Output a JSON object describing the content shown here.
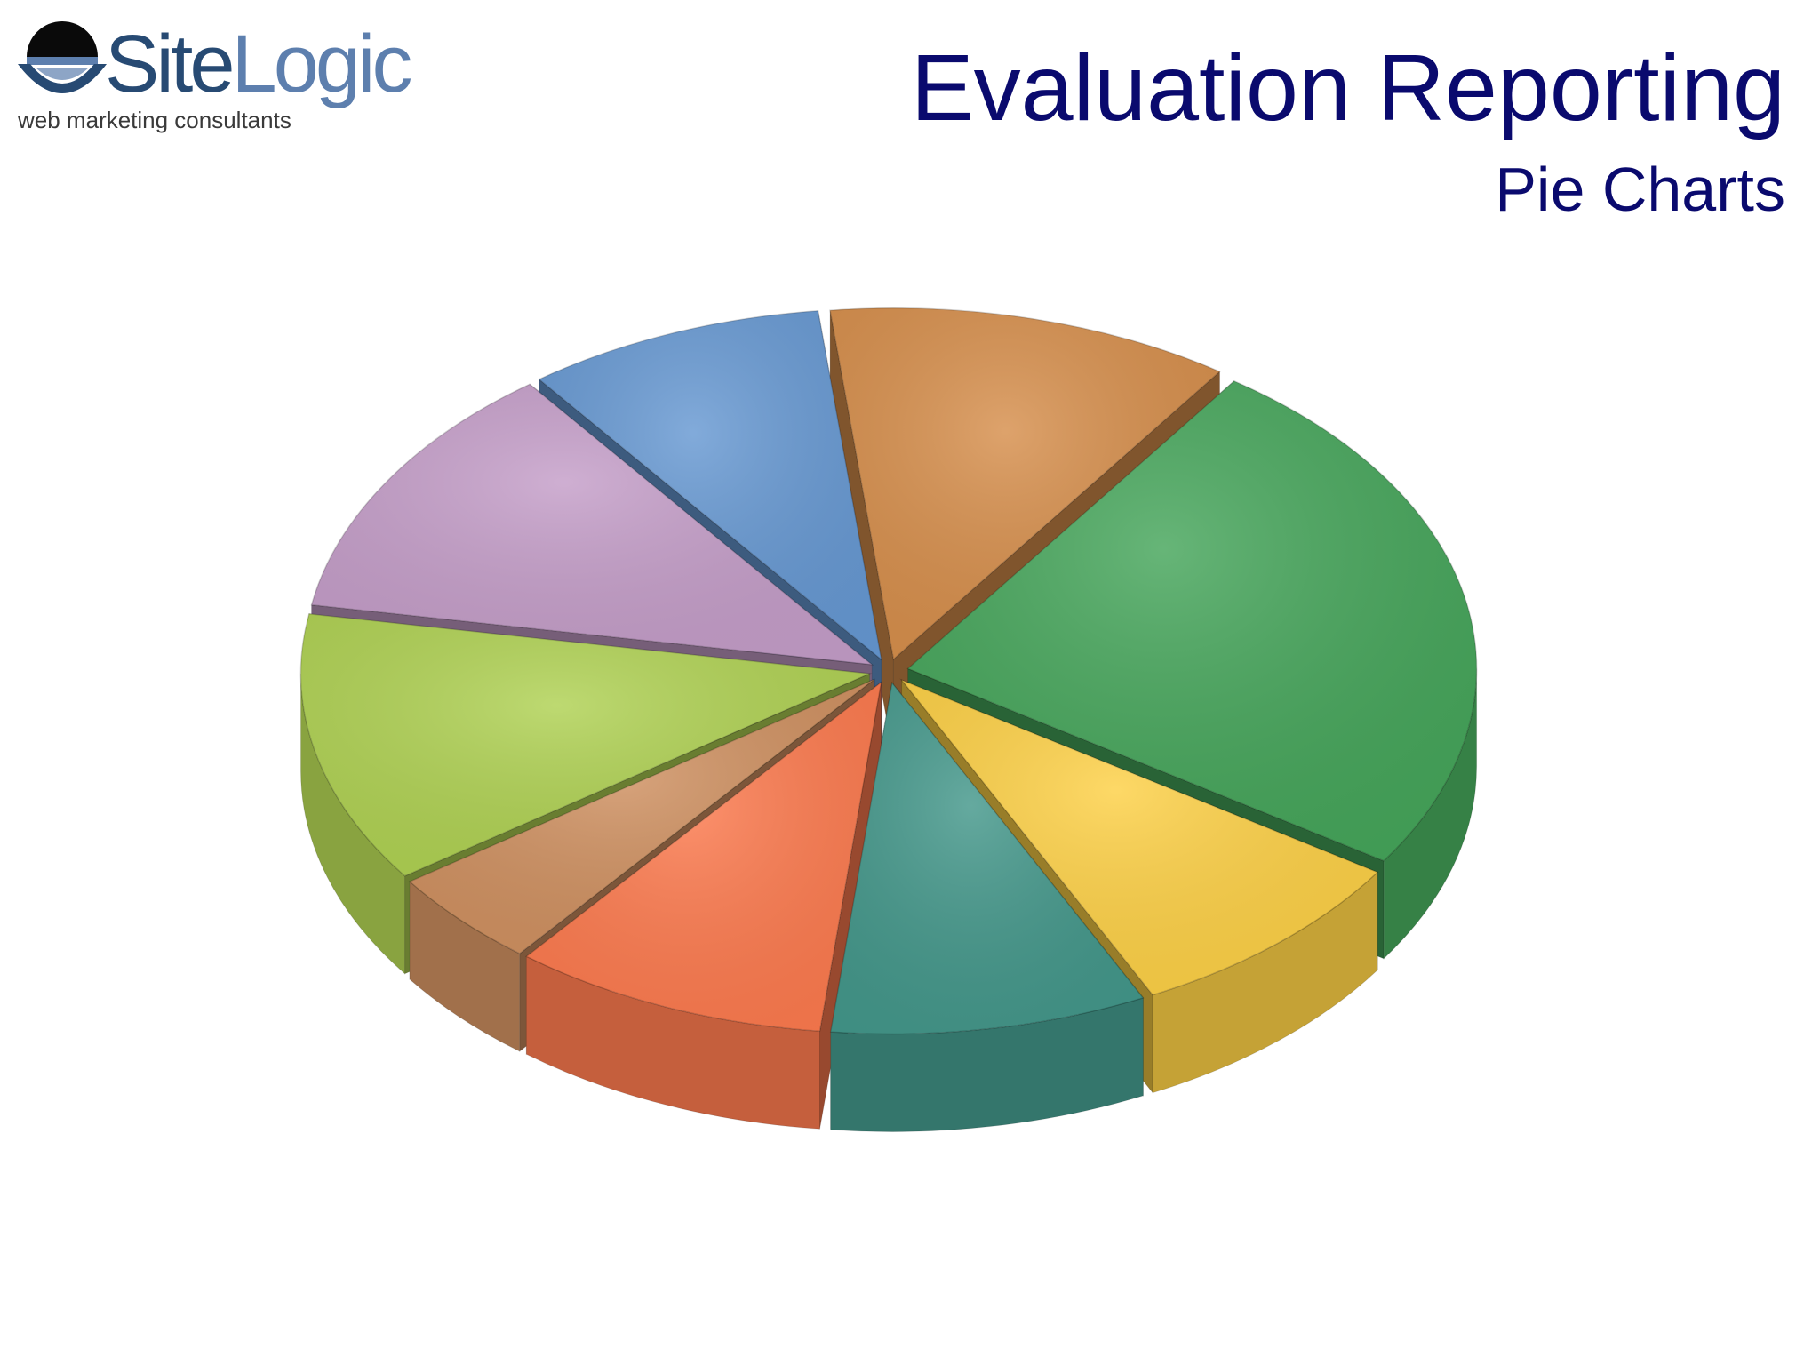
{
  "logo": {
    "word_part1": "Site",
    "word_part2": "Logic",
    "tagline": "web marketing consultants",
    "colors": {
      "dark": "#274a73",
      "light": "#5d7fae"
    }
  },
  "slide": {
    "title": "Evaluation Reporting",
    "subtitle": "Pie Charts",
    "title_color": "#0a0a6e"
  },
  "chart_data": {
    "type": "pie",
    "style": "3d-exploded",
    "legend": "none",
    "title": "",
    "slices": [
      {
        "value": 24.5,
        "color": "#45a55a"
      },
      {
        "value": 8.5,
        "color": "#fdd045"
      },
      {
        "value": 9.0,
        "color": "#43978a"
      },
      {
        "value": 9.0,
        "color": "#fd7a4e"
      },
      {
        "value": 4.5,
        "color": "#cf9060"
      },
      {
        "value": 12.5,
        "color": "#afd152"
      },
      {
        "value": 12.0,
        "color": "#c49dc8"
      },
      {
        "value": 8.5,
        "color": "#6698d2"
      },
      {
        "value": 11.5,
        "color": "#d68e4b"
      }
    ]
  }
}
